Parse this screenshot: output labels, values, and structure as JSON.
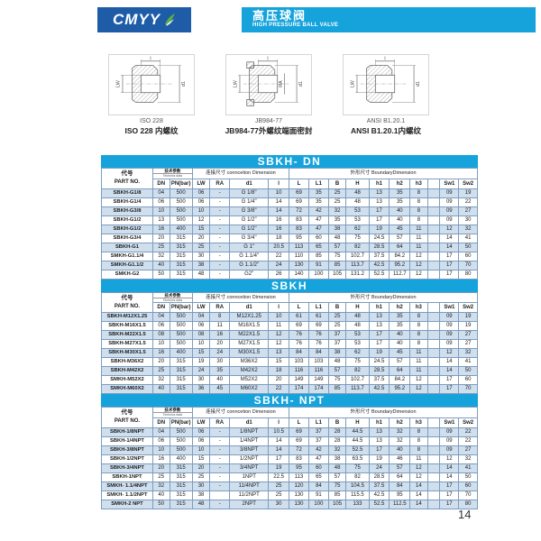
{
  "colors": {
    "accent": "#16a3dc",
    "logo_bg": "#1e5ca8",
    "stripe": "#cfdfee",
    "grid": "#7d9cbe"
  },
  "brand": {
    "logo_text": "CMYY"
  },
  "header": {
    "title_cn": "高压球阀",
    "title_en": "HIGH PRESSURE BALL VALVE"
  },
  "figures": [
    {
      "standard": "ISO 228",
      "caption": "ISO 228 内螺纹",
      "dims": {
        "top": "l",
        "left": "LW",
        "right": "d1",
        "mid": ""
      }
    },
    {
      "standard": "JB984-77",
      "caption": "JB984-77外螺纹端面密封",
      "dims": {
        "top": "l",
        "left": "LW",
        "right": "d1",
        "mid": "RA"
      }
    },
    {
      "standard": "ANSI B1.20.1",
      "caption": "ANSI B1.20.1内螺纹",
      "dims": {
        "top": "l",
        "left": "LW",
        "right": "d1",
        "mid": ""
      }
    }
  ],
  "table_header": {
    "part_cn": "代号",
    "part_en": "PART NO.",
    "tech_cn": "技术参数",
    "tech_en": "Technics data",
    "conn_label": "连接尺寸 conncetion Dimension",
    "bound_cn": "外形尺寸",
    "bound_en": "BoundaryDimension",
    "columns": [
      "DN",
      "PN(bar)",
      "LW",
      "RA",
      "d1",
      "l",
      "L",
      "L1",
      "B",
      "H",
      "h1",
      "h2",
      "h3",
      "",
      "Sw1",
      "Sw2"
    ]
  },
  "tables": [
    {
      "title": "SBKH- DN",
      "rows": [
        [
          "SBKH-G1/8",
          "04",
          "500",
          "06",
          "-",
          "G 1/8\"",
          "10",
          "69",
          "35",
          "25",
          "48",
          "13",
          "35",
          "8",
          "",
          "09",
          "19"
        ],
        [
          "SBKH-G1/4",
          "06",
          "500",
          "06",
          "-",
          "G 1/4\"",
          "14",
          "69",
          "35",
          "25",
          "48",
          "13",
          "35",
          "8",
          "",
          "09",
          "22"
        ],
        [
          "SBKH-G3/8",
          "10",
          "500",
          "10",
          "-",
          "G 3/8\"",
          "14",
          "72",
          "42",
          "32",
          "53",
          "17",
          "40",
          "8",
          "",
          "09",
          "27"
        ],
        [
          "SBKH-G1/2",
          "13",
          "500",
          "12",
          "-",
          "G 1/2\"",
          "16",
          "83",
          "47",
          "35",
          "53",
          "17",
          "40",
          "8",
          "",
          "09",
          "30"
        ],
        [
          "SBKH-G1/2",
          "16",
          "400",
          "15",
          "-",
          "G 1/2\"",
          "16",
          "83",
          "47",
          "38",
          "62",
          "19",
          "45",
          "11",
          "",
          "12",
          "32"
        ],
        [
          "SBKH-G3/4",
          "20",
          "315",
          "20",
          "-",
          "G 3/4\"",
          "18",
          "95",
          "60",
          "48",
          "75",
          "24.5",
          "57",
          "11",
          "",
          "14",
          "41"
        ],
        [
          "SBKH-G1",
          "25",
          "315",
          "25",
          "-",
          "G 1\"",
          "20.5",
          "113",
          "65",
          "57",
          "82",
          "28.5",
          "64",
          "11",
          "",
          "14",
          "50"
        ],
        [
          "SMKH-G1.1/4",
          "32",
          "315",
          "30",
          "-",
          "G 1.1/4\"",
          "22",
          "110",
          "85",
          "75",
          "102.7",
          "37.5",
          "84.2",
          "12",
          "",
          "17",
          "60"
        ],
        [
          "SMKH-G1.1/2",
          "40",
          "315",
          "38",
          "-",
          "G 1.1/2\"",
          "24",
          "130",
          "91",
          "85",
          "113.7",
          "42.5",
          "95.2",
          "12",
          "",
          "17",
          "70"
        ],
        [
          "SMKH-G2",
          "50",
          "315",
          "48",
          "-",
          "G2\"",
          "26",
          "140",
          "100",
          "105",
          "131.2",
          "52.5",
          "112.7",
          "12",
          "",
          "17",
          "80"
        ]
      ]
    },
    {
      "title": "SBKH",
      "rows": [
        [
          "SBKH-M12X1.25",
          "04",
          "500",
          "04",
          "8",
          "M12X1.25",
          "10",
          "61",
          "61",
          "25",
          "48",
          "13",
          "35",
          "8",
          "",
          "09",
          "19"
        ],
        [
          "SBKH-M16X1.5",
          "06",
          "500",
          "06",
          "11",
          "M16X1.5",
          "11",
          "69",
          "69",
          "25",
          "48",
          "13",
          "35",
          "8",
          "",
          "09",
          "19"
        ],
        [
          "SBKH-M22X1.5",
          "08",
          "500",
          "08",
          "16",
          "M22X1.5",
          "12",
          "76",
          "76",
          "37",
          "53",
          "17",
          "40",
          "8",
          "",
          "09",
          "27"
        ],
        [
          "SBKH-M27X1.5",
          "10",
          "500",
          "10",
          "20",
          "M27X1.5",
          "12",
          "76",
          "76",
          "37",
          "53",
          "17",
          "40",
          "8",
          "",
          "09",
          "27"
        ],
        [
          "SBKH-M30X1.5",
          "16",
          "400",
          "15",
          "24",
          "M30X1.5",
          "13",
          "84",
          "84",
          "38",
          "62",
          "19",
          "45",
          "11",
          "",
          "12",
          "32"
        ],
        [
          "SBKH-M36X2",
          "20",
          "315",
          "19",
          "30",
          "M36X2",
          "15",
          "103",
          "103",
          "48",
          "75",
          "24.5",
          "57",
          "11",
          "",
          "14",
          "41"
        ],
        [
          "SBKH-M42X2",
          "25",
          "315",
          "24",
          "35",
          "M42X2",
          "18",
          "116",
          "116",
          "57",
          "82",
          "28.5",
          "64",
          "11",
          "",
          "14",
          "50"
        ],
        [
          "SMKH-M52X2",
          "32",
          "315",
          "30",
          "40",
          "M52X2",
          "20",
          "149",
          "149",
          "75",
          "102.7",
          "37.5",
          "84.2",
          "12",
          "",
          "17",
          "60"
        ],
        [
          "SMKH-M60X2",
          "40",
          "315",
          "36",
          "45",
          "M60X2",
          "22",
          "174",
          "174",
          "85",
          "113.7",
          "42.5",
          "95.2",
          "12",
          "",
          "17",
          "70"
        ]
      ]
    },
    {
      "title": "SBKH- NPT",
      "rows": [
        [
          "SBKH-1/8NPT",
          "04",
          "500",
          "06",
          "-",
          "1/8NPT",
          "10.5",
          "69",
          "37",
          "28",
          "44.5",
          "13",
          "32",
          "8",
          "",
          "09",
          "22"
        ],
        [
          "SBKH-1/4NPT",
          "06",
          "500",
          "06",
          "-",
          "1/4NPT",
          "14",
          "69",
          "37",
          "28",
          "44.5",
          "13",
          "32",
          "8",
          "",
          "09",
          "22"
        ],
        [
          "SBKH-3/8NPT",
          "10",
          "500",
          "10",
          "-",
          "3/8NPT",
          "14",
          "72",
          "42",
          "32",
          "52.5",
          "17",
          "40",
          "8",
          "",
          "09",
          "27"
        ],
        [
          "SBKH-1/2NPT",
          "16",
          "400",
          "15",
          "-",
          "1/2NPT",
          "17",
          "83",
          "47",
          "38",
          "63.5",
          "19",
          "46",
          "11",
          "",
          "12",
          "32"
        ],
        [
          "SBKH-3/4NPT",
          "20",
          "315",
          "20",
          "-",
          "3/4NPT",
          "19",
          "95",
          "60",
          "48",
          "75",
          "24",
          "57",
          "12",
          "",
          "14",
          "41"
        ],
        [
          "SBKH-1NPT",
          "25",
          "315",
          "25",
          "-",
          "1NPT",
          "22.5",
          "113",
          "65",
          "57",
          "82",
          "28.5",
          "64",
          "12",
          "",
          "14",
          "50"
        ],
        [
          "SMKH- 1.1/4NPT",
          "32",
          "315",
          "30",
          "-",
          "11/4NPT",
          "25",
          "120",
          "84",
          "75",
          "104.5",
          "37.5",
          "84",
          "14",
          "",
          "17",
          "60"
        ],
        [
          "SMKH- 1.1/2NPT",
          "40",
          "315",
          "38",
          "",
          "11/2NPT",
          "25",
          "130",
          "91",
          "85",
          "115.5",
          "42.5",
          "95",
          "14",
          "",
          "17",
          "70"
        ],
        [
          "SMKH-2 NPT",
          "50",
          "315",
          "48",
          "-",
          "2NPT",
          "30",
          "130",
          "100",
          "105",
          "133",
          "52.5",
          "112.5",
          "14",
          "",
          "17",
          "80"
        ]
      ]
    }
  ],
  "page": {
    "number": "14"
  }
}
